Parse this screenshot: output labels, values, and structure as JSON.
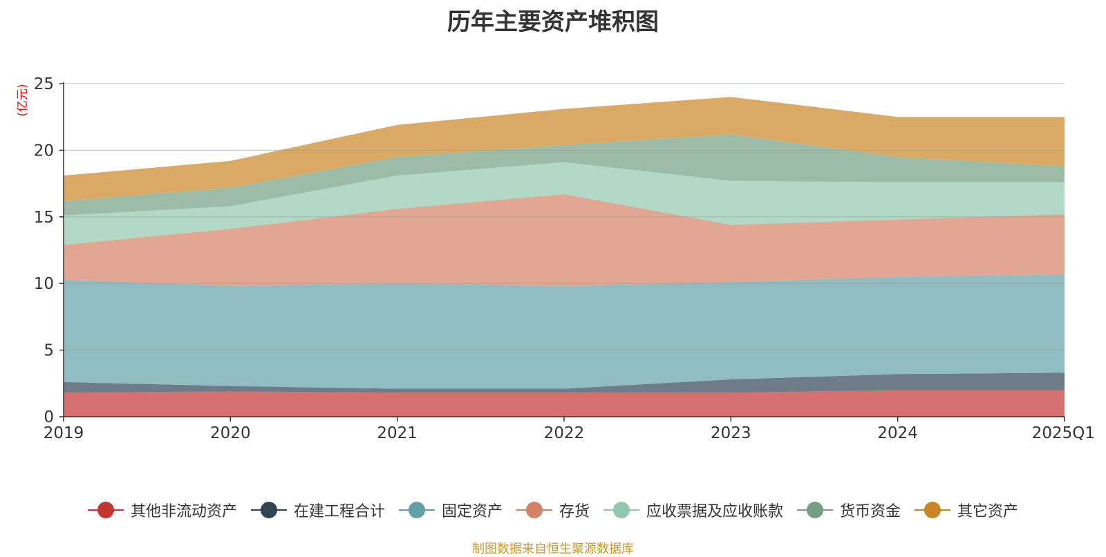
{
  "chart_data": {
    "type": "area",
    "stacked": true,
    "title": "历年主要资产堆积图",
    "ylabel": "(亿元)",
    "xlabel": "",
    "ylim": [
      0,
      25
    ],
    "yticks": [
      0,
      5,
      10,
      15,
      20,
      25
    ],
    "categories": [
      "2019",
      "2020",
      "2021",
      "2022",
      "2023",
      "2024",
      "2025Q1"
    ],
    "series": [
      {
        "name": "其他非流动资产",
        "color": "#c23531",
        "values": [
          1.8,
          1.9,
          1.8,
          1.8,
          1.8,
          2.0,
          2.0
        ]
      },
      {
        "name": "在建工程合计",
        "color": "#2f4554",
        "values": [
          0.8,
          0.4,
          0.3,
          0.3,
          1.0,
          1.2,
          1.3
        ]
      },
      {
        "name": "固定资产",
        "color": "#61a0a8",
        "values": [
          7.7,
          7.5,
          7.9,
          7.7,
          7.3,
          7.3,
          7.4
        ]
      },
      {
        "name": "存货",
        "color": "#d48265",
        "values": [
          2.6,
          4.3,
          5.6,
          6.9,
          4.3,
          4.3,
          4.5
        ]
      },
      {
        "name": "应收票据及应收账款",
        "color": "#91c7ae",
        "values": [
          2.2,
          1.7,
          2.5,
          2.4,
          3.3,
          2.8,
          2.4
        ]
      },
      {
        "name": "货币资金",
        "color": "#749f83",
        "values": [
          1.1,
          1.4,
          1.4,
          1.3,
          3.5,
          1.9,
          1.2
        ]
      },
      {
        "name": "其它资产",
        "color": "#ca8622",
        "values": [
          1.9,
          2.0,
          2.4,
          2.7,
          2.8,
          3.0,
          3.7
        ]
      }
    ],
    "legend_position": "bottom",
    "grid": true,
    "source": "制图数据来自恒生聚源数据库"
  }
}
